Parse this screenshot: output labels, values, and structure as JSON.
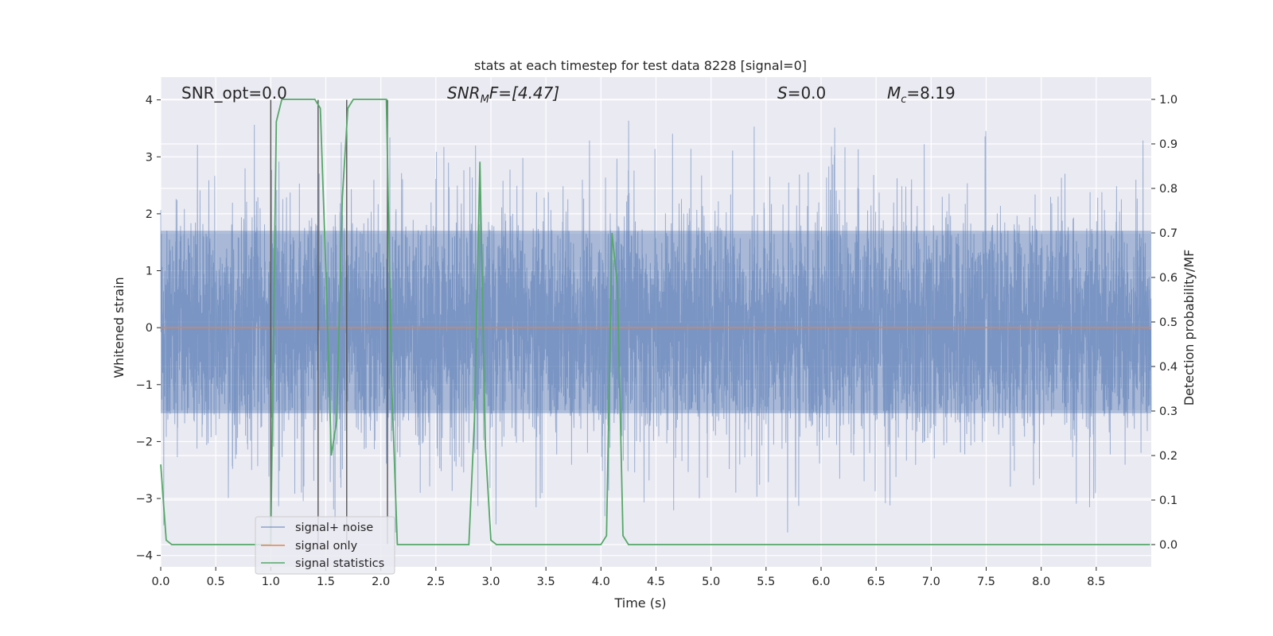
{
  "chart_data": {
    "type": "line",
    "title": "stats at each timestep for test data 8228 [signal=0]",
    "xlabel": "Time (s)",
    "ylabel_left": "Whitened strain",
    "ylabel_right": "Detection probability/MF",
    "xlim": [
      0.0,
      9.0
    ],
    "ylim_left": [
      -4.2,
      4.4
    ],
    "ylim_right": [
      -0.05,
      1.05
    ],
    "x_ticks": [
      "0.0",
      "0.5",
      "1.0",
      "1.5",
      "2.0",
      "2.5",
      "3.0",
      "3.5",
      "4.0",
      "4.5",
      "5.0",
      "5.5",
      "6.0",
      "6.5",
      "7.0",
      "7.5",
      "8.0",
      "8.5"
    ],
    "y_left_ticks": [
      "4",
      "3",
      "2",
      "1",
      "0",
      "−1",
      "−2",
      "−3",
      "−4"
    ],
    "y_right_ticks": [
      "1.0",
      "0.9",
      "0.8",
      "0.7",
      "0.6",
      "0.5",
      "0.4",
      "0.3",
      "0.2",
      "0.1",
      "0.0"
    ],
    "grid": true,
    "legend_position": "lower-left",
    "annotations": {
      "snr_opt": "SNR_opt=0.0",
      "snr_mf_main": "SNR",
      "snr_mf_sub": "M",
      "snr_mf_rest": "F=[4.47]",
      "s_main": "S",
      "s_rest": "=0.0",
      "mc_main": "M",
      "mc_sub": "c",
      "mc_rest": "=8.19"
    },
    "series": [
      {
        "name": "signal+ noise",
        "color": "#4c72b0",
        "description_only": false,
        "envelope_typical_max": 1.7,
        "envelope_typical_min": -1.5,
        "peak_max": 4.0,
        "peak_min": -3.85
      },
      {
        "name": "signal only",
        "color": "#dd8452",
        "values_constant": 0.0
      },
      {
        "name": "signal statistics",
        "color": "#55a868",
        "x": [
          0.0,
          0.05,
          0.1,
          0.15,
          0.2,
          0.25,
          0.3,
          0.35,
          0.4,
          0.45,
          0.5,
          0.55,
          0.6,
          0.65,
          0.7,
          0.75,
          0.8,
          0.85,
          0.9,
          0.95,
          1.0,
          1.05,
          1.1,
          1.15,
          1.2,
          1.25,
          1.3,
          1.35,
          1.4,
          1.45,
          1.5,
          1.55,
          1.6,
          1.65,
          1.7,
          1.75,
          1.8,
          1.85,
          1.9,
          1.95,
          2.0,
          2.05,
          2.1,
          2.15,
          2.2,
          2.3,
          2.4,
          2.5,
          2.6,
          2.7,
          2.8,
          2.85,
          2.9,
          2.95,
          3.0,
          3.05,
          3.1,
          3.2,
          3.3,
          3.5,
          3.7,
          3.9,
          4.0,
          4.05,
          4.1,
          4.15,
          4.2,
          4.25,
          4.3,
          4.4,
          4.5,
          4.7,
          5.0,
          5.5,
          6.0,
          6.5,
          7.0,
          7.5,
          8.0,
          8.5,
          8.99
        ],
        "values": [
          0.18,
          0.01,
          0.0,
          0.0,
          0.0,
          0.0,
          0.0,
          0.0,
          0.0,
          0.0,
          0.0,
          0.0,
          0.0,
          0.0,
          0.0,
          0.0,
          0.0,
          0.0,
          0.0,
          0.0,
          0.0,
          0.95,
          1.0,
          1.0,
          1.0,
          1.0,
          1.0,
          1.0,
          1.0,
          0.98,
          0.62,
          0.2,
          0.28,
          0.78,
          0.98,
          1.0,
          1.0,
          1.0,
          1.0,
          1.0,
          1.0,
          1.0,
          0.35,
          0.0,
          0.0,
          0.0,
          0.0,
          0.0,
          0.0,
          0.0,
          0.0,
          0.28,
          0.86,
          0.22,
          0.01,
          0.0,
          0.0,
          0.0,
          0.0,
          0.0,
          0.0,
          0.0,
          0.0,
          0.02,
          0.7,
          0.58,
          0.02,
          0.0,
          0.0,
          0.0,
          0.0,
          0.0,
          0.0,
          0.0,
          0.0,
          0.0,
          0.0,
          0.0,
          0.0,
          0.0,
          0.0
        ]
      }
    ],
    "vertical_markers_x": [
      1.0,
      1.43,
      1.69,
      2.06
    ]
  }
}
